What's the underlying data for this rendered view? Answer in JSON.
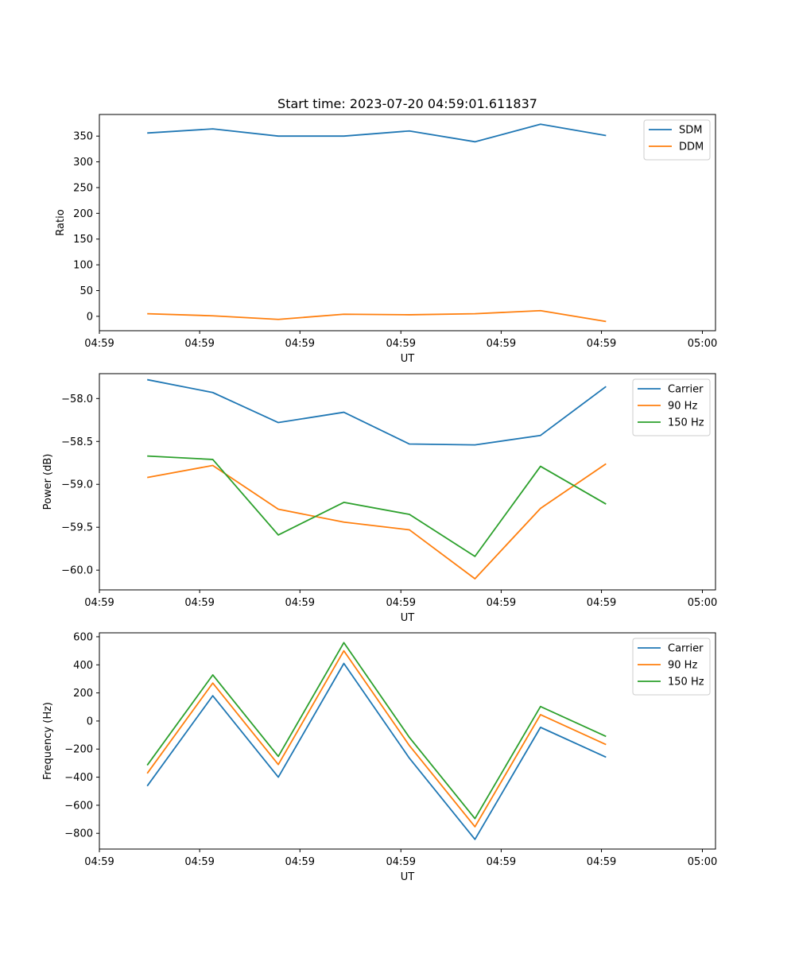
{
  "chart_data": [
    {
      "type": "line",
      "title": "Start time: 2023-07-20 04:59:01.611837",
      "xlabel": "UT",
      "ylabel": "Ratio",
      "x": [
        0,
        1,
        2,
        3,
        4,
        5,
        6,
        7
      ],
      "xlim": [
        -0.73,
        8.67
      ],
      "ylim": [
        -28,
        392
      ],
      "x_ticks": [
        -0.73,
        0.8,
        2.33,
        3.87,
        5.4,
        6.93,
        8.47
      ],
      "x_tick_labels": [
        "04:59",
        "04:59",
        "04:59",
        "04:59",
        "04:59",
        "04:59",
        "05:00"
      ],
      "y_ticks": [
        0,
        50,
        100,
        150,
        200,
        250,
        300,
        350
      ],
      "y_tick_labels": [
        "0",
        "50",
        "100",
        "150",
        "200",
        "250",
        "300",
        "350"
      ],
      "legend": "top-right",
      "series": [
        {
          "name": "SDM",
          "color": "#1f77b4",
          "values": [
            356,
            364,
            350,
            350,
            360,
            339,
            373,
            351
          ]
        },
        {
          "name": "DDM",
          "color": "#ff7f0e",
          "values": [
            5,
            1,
            -6,
            4,
            3,
            5,
            11,
            -10
          ]
        }
      ]
    },
    {
      "type": "line",
      "title": "",
      "xlabel": "UT",
      "ylabel": "Power (dB)",
      "x": [
        0,
        1,
        2,
        3,
        4,
        5,
        6,
        7
      ],
      "xlim": [
        -0.73,
        8.67
      ],
      "ylim": [
        -60.23,
        -57.71
      ],
      "x_ticks": [
        -0.73,
        0.8,
        2.33,
        3.87,
        5.4,
        6.93,
        8.47
      ],
      "x_tick_labels": [
        "04:59",
        "04:59",
        "04:59",
        "04:59",
        "04:59",
        "04:59",
        "05:00"
      ],
      "y_ticks": [
        -60.0,
        -59.5,
        -59.0,
        -58.5,
        -58.0
      ],
      "y_tick_labels": [
        "−60.0",
        "−59.5",
        "−59.0",
        "−58.5",
        "−58.0"
      ],
      "legend": "top-right",
      "series": [
        {
          "name": "Carrier",
          "color": "#1f77b4",
          "values": [
            -57.78,
            -57.93,
            -58.28,
            -58.16,
            -58.53,
            -58.54,
            -58.43,
            -57.86
          ]
        },
        {
          "name": "90 Hz",
          "color": "#ff7f0e",
          "values": [
            -58.92,
            -58.78,
            -59.29,
            -59.44,
            -59.53,
            -60.1,
            -59.28,
            -58.76
          ]
        },
        {
          "name": "150 Hz",
          "color": "#2ca02c",
          "values": [
            -58.67,
            -58.71,
            -59.59,
            -59.21,
            -59.35,
            -59.84,
            -58.79,
            -59.23
          ]
        }
      ]
    },
    {
      "type": "line",
      "title": "",
      "xlabel": "UT",
      "ylabel": "Frequency (Hz)",
      "x": [
        0,
        1,
        2,
        3,
        4,
        5,
        6,
        7
      ],
      "xlim": [
        -0.73,
        8.67
      ],
      "ylim": [
        -912,
        628
      ],
      "x_ticks": [
        -0.73,
        0.8,
        2.33,
        3.87,
        5.4,
        6.93,
        8.47
      ],
      "x_tick_labels": [
        "04:59",
        "04:59",
        "04:59",
        "04:59",
        "04:59",
        "04:59",
        "05:00"
      ],
      "y_ticks": [
        -800,
        -600,
        -400,
        -200,
        0,
        200,
        400,
        600
      ],
      "y_tick_labels": [
        "−800",
        "−600",
        "−400",
        "−200",
        "0",
        "200",
        "400",
        "600"
      ],
      "legend": "top-right",
      "series": [
        {
          "name": "Carrier",
          "color": "#1f77b4",
          "values": [
            -463,
            180,
            -400,
            410,
            -265,
            -843,
            -45,
            -258
          ]
        },
        {
          "name": "90 Hz",
          "color": "#ff7f0e",
          "values": [
            -373,
            270,
            -310,
            500,
            -175,
            -753,
            45,
            -168
          ]
        },
        {
          "name": "150 Hz",
          "color": "#2ca02c",
          "values": [
            -315,
            328,
            -252,
            558,
            -117,
            -695,
            103,
            -110
          ]
        }
      ]
    }
  ]
}
